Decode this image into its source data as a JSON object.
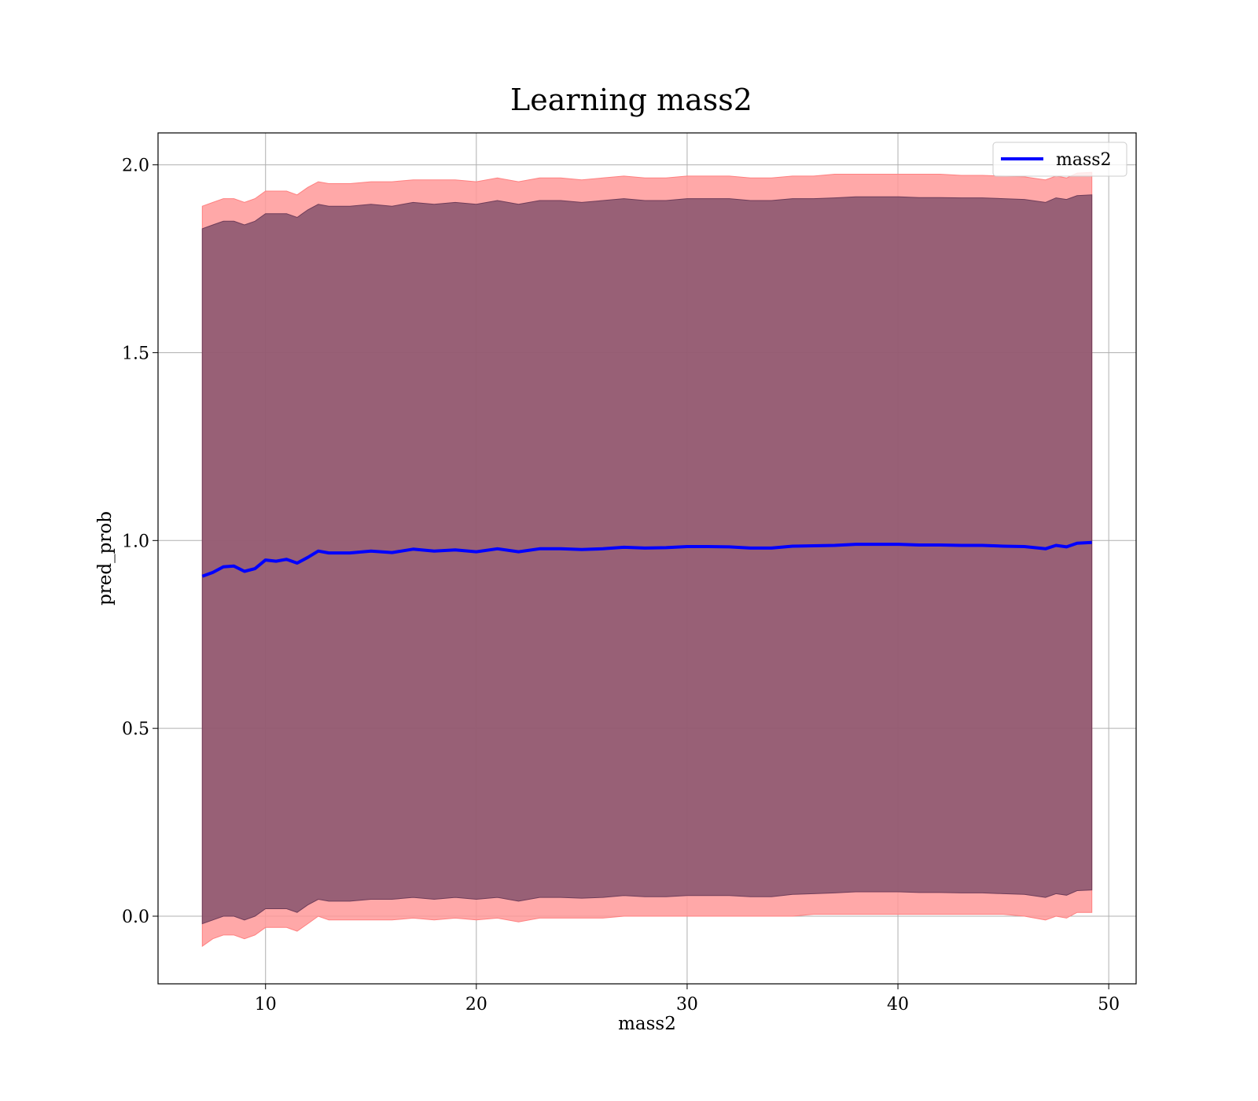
{
  "chart_data": {
    "type": "area",
    "title": "Learning mass2",
    "xlabel": "mass2",
    "ylabel": "pred_prob",
    "xlim": [
      4.9,
      51.3
    ],
    "ylim": [
      -0.18,
      2.085
    ],
    "xticks": [
      10,
      20,
      30,
      40,
      50
    ],
    "yticks": [
      0.0,
      0.5,
      1.0,
      1.5,
      2.0
    ],
    "xtick_labels": [
      "10",
      "20",
      "30",
      "40",
      "50"
    ],
    "ytick_labels": [
      "0.0",
      "0.5",
      "1.0",
      "1.5",
      "2.0"
    ],
    "grid": true,
    "legend": {
      "position": "top-right",
      "entries": [
        "mass2"
      ]
    },
    "colors": {
      "mean_line": "#0000ff",
      "outer_band": "#ff9999",
      "inner_band": "#8b6d8a",
      "grid": "#b0b0b0"
    },
    "series": [
      {
        "name": "mass2",
        "x": [
          7.0,
          7.5,
          8.0,
          8.5,
          9.0,
          9.5,
          10.0,
          10.5,
          11.0,
          11.5,
          12.0,
          12.5,
          13,
          14,
          15,
          16,
          17,
          18,
          19,
          20,
          21,
          22,
          23,
          24,
          25,
          26,
          27,
          28,
          29,
          30,
          31,
          32,
          33,
          34,
          35,
          36,
          37,
          38,
          39,
          40,
          41,
          42,
          43,
          44,
          45,
          46,
          47,
          47.5,
          48,
          48.5,
          49.2
        ],
        "y": [
          0.905,
          0.915,
          0.93,
          0.932,
          0.918,
          0.925,
          0.948,
          0.945,
          0.95,
          0.94,
          0.955,
          0.972,
          0.967,
          0.967,
          0.972,
          0.968,
          0.977,
          0.972,
          0.975,
          0.97,
          0.978,
          0.97,
          0.978,
          0.978,
          0.976,
          0.978,
          0.982,
          0.98,
          0.981,
          0.984,
          0.984,
          0.983,
          0.98,
          0.98,
          0.985,
          0.986,
          0.987,
          0.99,
          0.99,
          0.99,
          0.988,
          0.988,
          0.987,
          0.987,
          0.985,
          0.984,
          0.978,
          0.987,
          0.983,
          0.993,
          0.995
        ]
      }
    ],
    "bands": [
      {
        "name": "outer",
        "lower": [
          -0.08,
          -0.06,
          -0.05,
          -0.05,
          -0.06,
          -0.05,
          -0.03,
          -0.03,
          -0.03,
          -0.04,
          -0.02,
          0.0,
          -0.01,
          -0.01,
          -0.01,
          -0.01,
          -0.005,
          -0.01,
          -0.005,
          -0.01,
          -0.005,
          -0.015,
          -0.005,
          -0.005,
          -0.005,
          -0.005,
          0.0,
          0.0,
          0.0,
          0.0,
          0.0,
          0.0,
          0.0,
          0.0,
          0.0,
          0.005,
          0.005,
          0.005,
          0.005,
          0.005,
          0.005,
          0.005,
          0.005,
          0.005,
          0.005,
          0.0,
          -0.01,
          0.0,
          -0.005,
          0.01,
          0.01
        ],
        "upper": [
          1.89,
          1.9,
          1.91,
          1.91,
          1.9,
          1.91,
          1.93,
          1.93,
          1.93,
          1.92,
          1.94,
          1.955,
          1.95,
          1.95,
          1.955,
          1.955,
          1.96,
          1.96,
          1.96,
          1.955,
          1.965,
          1.955,
          1.965,
          1.965,
          1.96,
          1.965,
          1.97,
          1.965,
          1.965,
          1.97,
          1.97,
          1.97,
          1.965,
          1.965,
          1.97,
          1.97,
          1.975,
          1.975,
          1.975,
          1.975,
          1.975,
          1.975,
          1.972,
          1.972,
          1.97,
          1.968,
          1.96,
          1.97,
          1.965,
          1.978,
          1.98
        ]
      },
      {
        "name": "inner",
        "lower": [
          -0.02,
          -0.01,
          0.0,
          0.0,
          -0.01,
          0.0,
          0.02,
          0.02,
          0.02,
          0.01,
          0.03,
          0.045,
          0.04,
          0.04,
          0.045,
          0.045,
          0.05,
          0.045,
          0.05,
          0.045,
          0.05,
          0.04,
          0.05,
          0.05,
          0.048,
          0.05,
          0.055,
          0.052,
          0.052,
          0.055,
          0.055,
          0.055,
          0.052,
          0.052,
          0.058,
          0.06,
          0.062,
          0.065,
          0.065,
          0.065,
          0.063,
          0.063,
          0.062,
          0.062,
          0.06,
          0.058,
          0.05,
          0.06,
          0.056,
          0.068,
          0.07
        ],
        "upper": [
          1.83,
          1.84,
          1.85,
          1.85,
          1.84,
          1.85,
          1.87,
          1.87,
          1.87,
          1.86,
          1.88,
          1.895,
          1.89,
          1.89,
          1.895,
          1.89,
          1.9,
          1.895,
          1.9,
          1.895,
          1.905,
          1.895,
          1.905,
          1.905,
          1.9,
          1.905,
          1.91,
          1.905,
          1.905,
          1.91,
          1.91,
          1.91,
          1.905,
          1.905,
          1.91,
          1.91,
          1.912,
          1.915,
          1.915,
          1.915,
          1.913,
          1.913,
          1.912,
          1.912,
          1.91,
          1.908,
          1.9,
          1.912,
          1.908,
          1.918,
          1.92
        ]
      }
    ]
  }
}
